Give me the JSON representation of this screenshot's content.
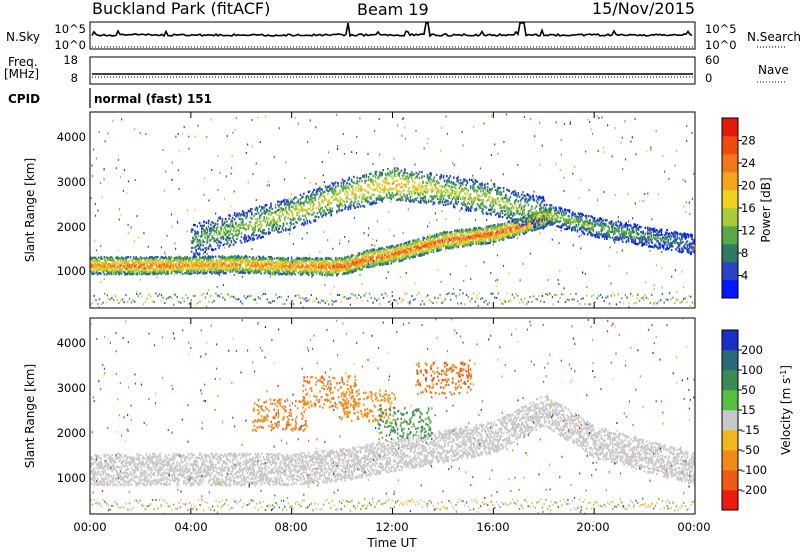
{
  "header": {
    "station": "Buckland Park (fitACF)",
    "beam": "Beam 19",
    "date": "15/Nov/2015"
  },
  "strips": {
    "nsky": {
      "label": "N.Sky",
      "ticks": [
        "10^5",
        "10^0"
      ]
    },
    "nsearch": {
      "label": "N.Search",
      "ticks": [
        "10^5",
        "10^0"
      ]
    },
    "freq": {
      "label_line1": "Freq.",
      "label_line2": "[MHz]",
      "ticks": [
        "18",
        "8"
      ]
    },
    "nave": {
      "label": "Nave",
      "ticks": [
        "60",
        "0"
      ]
    },
    "cpid": {
      "label": "CPID",
      "value": "normal (fast) 151"
    }
  },
  "axes": {
    "xlabel": "Time UT",
    "x_ticks": [
      "00:00",
      "04:00",
      "08:00",
      "12:00",
      "16:00",
      "20:00",
      "00:00"
    ],
    "ylabel": "Slant Range [km]",
    "y_ticks": [
      "1000",
      "2000",
      "3000",
      "4000"
    ]
  },
  "colorbars": {
    "power": {
      "label": "Power [dB]",
      "ticks": [
        "4",
        "8",
        "12",
        "16",
        "20",
        "24",
        "28"
      ],
      "colors": [
        "#0018ff",
        "#2a44c8",
        "#2e7a62",
        "#58a84a",
        "#a6cc3a",
        "#f0d020",
        "#f4a818",
        "#f07818",
        "#ee4a12",
        "#e41a0c"
      ]
    },
    "velocity": {
      "label_main": "Velocity [m s",
      "label_sup": "-1",
      "label_end": "]",
      "ticks": [
        "200",
        "100",
        "50",
        "15",
        "-15",
        "-50",
        "-100",
        "-200"
      ],
      "colors": [
        "#1a2ec8",
        "#2a6a78",
        "#3a8a52",
        "#58c040",
        "#c8c8c8",
        "#f0b81a",
        "#f08a18",
        "#f05a14",
        "#f01a10"
      ]
    }
  },
  "chart_data": {
    "type": "heatmap",
    "title": "Beam 19",
    "xlabel": "Time UT",
    "ylabel": "Slant Range [km]",
    "xlim": [
      "00:00",
      "24:00"
    ],
    "ylim": [
      200,
      4500
    ],
    "panels": [
      {
        "name": "Power [dB]",
        "colorbar_ticks": [
          4,
          8,
          12,
          16,
          20,
          24,
          28
        ],
        "features": [
          {
            "name": "main-band",
            "t_hours": [
              0,
              2,
              4,
              6,
              8,
              10,
              11,
              12,
              14,
              16,
              17,
              18.3
            ],
            "range_km": [
              1150,
              1150,
              1160,
              1180,
              1140,
              1130,
              1300,
              1400,
              1700,
              1850,
              2000,
              2250
            ],
            "power_db": [
              24,
              26,
              24,
              24,
              24,
              27,
              26,
              26,
              27,
              27,
              26,
              22
            ]
          },
          {
            "name": "upper-band",
            "t_hours": [
              4,
              6,
              8,
              10,
              12,
              14,
              16,
              17,
              18
            ],
            "range_km": [
              1700,
              2000,
              2300,
              2700,
              2950,
              2800,
              2600,
              2400,
              2300
            ],
            "power_db": [
              10,
              14,
              16,
              18,
              22,
              16,
              16,
              14,
              12
            ]
          },
          {
            "name": "late-descending-band",
            "t_hours": [
              18,
              20,
              22,
              24
            ],
            "range_km": [
              2300,
              2000,
              1800,
              1600
            ],
            "power_db": [
              14,
              12,
              10,
              8
            ]
          }
        ]
      },
      {
        "name": "Velocity [m s^-1]",
        "colorbar_ticks": [
          200,
          100,
          50,
          15,
          -15,
          -50,
          -100,
          -200
        ],
        "features": [
          {
            "name": "ground-scatter-band",
            "t_hours": [
              0,
              4,
              8,
              10,
              12,
              16,
              18,
              20,
              24
            ],
            "range_km": [
              1200,
              1200,
              1200,
              1300,
              1500,
              1900,
              2500,
              1800,
              1200
            ],
            "velocity_ms": [
              0,
              0,
              0,
              0,
              0,
              0,
              0,
              0,
              0
            ]
          },
          {
            "name": "ionospheric-scatter",
            "t_hours": [
              7.5,
              9.5,
              11,
              12.5,
              14
            ],
            "range_km": [
              2400,
              2900,
              2600,
              2200,
              3200
            ],
            "velocity_ms": [
              -60,
              -60,
              -50,
              40,
              -80
            ]
          }
        ]
      }
    ]
  }
}
